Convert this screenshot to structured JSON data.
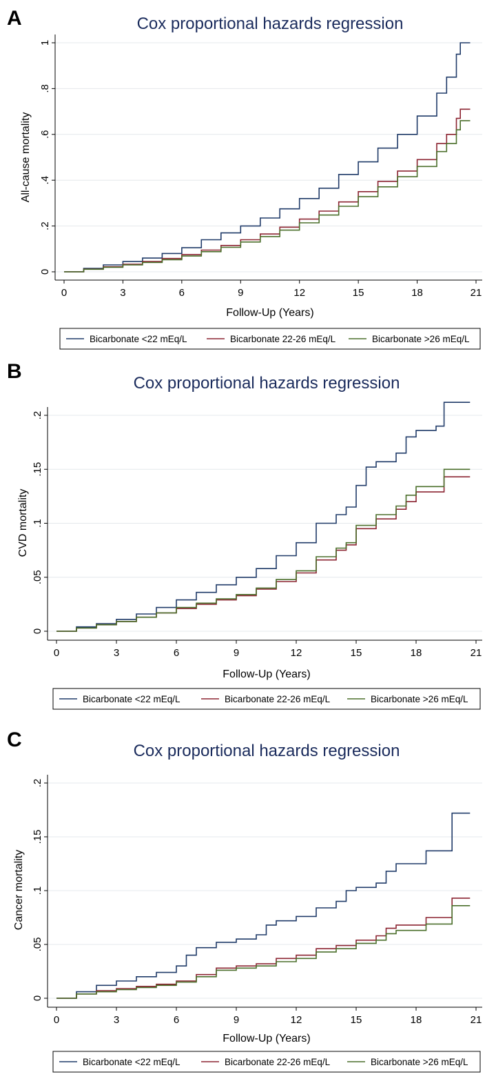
{
  "colors": {
    "lt22": "#1f3a68",
    "mid": "#8b2330",
    "gt26": "#4a6e2a",
    "grid": "#e4e8ec",
    "axis": "#000000"
  },
  "legend": {
    "lt22": "Bicarbonate <22 mEq/L",
    "mid": "Bicarbonate 22-26 mEq/L",
    "gt26": "Bicarbonate >26 mEq/L"
  },
  "chart_data": [
    {
      "panel": "A",
      "type": "line",
      "title": "Cox proportional hazards regression",
      "xlabel": "Follow-Up (Years)",
      "ylabel": "All-cause mortality",
      "xlim": [
        0,
        21
      ],
      "ylim": [
        0,
        1
      ],
      "xticks": [
        0,
        3,
        6,
        9,
        12,
        15,
        18,
        21
      ],
      "yticks": [
        0,
        0.2,
        0.4,
        0.6,
        0.8,
        1
      ],
      "ytick_labels": [
        "0",
        ".2",
        ".4",
        ".6",
        ".8",
        "1"
      ],
      "series": [
        {
          "key": "lt22",
          "name": "Bicarbonate <22 mEq/L",
          "points": [
            [
              0,
              0
            ],
            [
              1,
              0.015
            ],
            [
              2,
              0.03
            ],
            [
              3,
              0.045
            ],
            [
              4,
              0.06
            ],
            [
              5,
              0.08
            ],
            [
              6,
              0.105
            ],
            [
              7,
              0.14
            ],
            [
              8,
              0.17
            ],
            [
              9,
              0.2
            ],
            [
              10,
              0.235
            ],
            [
              11,
              0.275
            ],
            [
              12,
              0.32
            ],
            [
              13,
              0.365
            ],
            [
              14,
              0.425
            ],
            [
              15,
              0.48
            ],
            [
              16,
              0.54
            ],
            [
              17,
              0.6
            ],
            [
              18,
              0.68
            ],
            [
              19,
              0.78
            ],
            [
              19.5,
              0.85
            ],
            [
              20,
              0.95
            ],
            [
              20.2,
              1.0
            ],
            [
              20.7,
              1.0
            ]
          ]
        },
        {
          "key": "mid",
          "name": "Bicarbonate 22-26 mEq/L",
          "points": [
            [
              0,
              0
            ],
            [
              1,
              0.012
            ],
            [
              2,
              0.022
            ],
            [
              3,
              0.033
            ],
            [
              4,
              0.045
            ],
            [
              5,
              0.058
            ],
            [
              6,
              0.075
            ],
            [
              7,
              0.095
            ],
            [
              8,
              0.115
            ],
            [
              9,
              0.14
            ],
            [
              10,
              0.165
            ],
            [
              11,
              0.195
            ],
            [
              12,
              0.23
            ],
            [
              13,
              0.265
            ],
            [
              14,
              0.305
            ],
            [
              15,
              0.35
            ],
            [
              16,
              0.395
            ],
            [
              17,
              0.44
            ],
            [
              18,
              0.49
            ],
            [
              19,
              0.56
            ],
            [
              19.5,
              0.6
            ],
            [
              20,
              0.67
            ],
            [
              20.2,
              0.71
            ],
            [
              20.7,
              0.71
            ]
          ]
        },
        {
          "key": "gt26",
          "name": "Bicarbonate >26 mEq/L",
          "points": [
            [
              0,
              0
            ],
            [
              1,
              0.011
            ],
            [
              2,
              0.02
            ],
            [
              3,
              0.03
            ],
            [
              4,
              0.041
            ],
            [
              5,
              0.053
            ],
            [
              6,
              0.069
            ],
            [
              7,
              0.088
            ],
            [
              8,
              0.107
            ],
            [
              9,
              0.13
            ],
            [
              10,
              0.154
            ],
            [
              11,
              0.182
            ],
            [
              12,
              0.214
            ],
            [
              13,
              0.248
            ],
            [
              14,
              0.286
            ],
            [
              15,
              0.328
            ],
            [
              16,
              0.371
            ],
            [
              17,
              0.415
            ],
            [
              18,
              0.46
            ],
            [
              19,
              0.525
            ],
            [
              19.5,
              0.56
            ],
            [
              20,
              0.62
            ],
            [
              20.2,
              0.66
            ],
            [
              20.7,
              0.66
            ]
          ]
        }
      ]
    },
    {
      "panel": "B",
      "type": "line",
      "title": "Cox proportional hazards regression",
      "xlabel": "Follow-Up (Years)",
      "ylabel": "CVD mortality",
      "xlim": [
        0,
        21
      ],
      "ylim": [
        0,
        0.2
      ],
      "xticks": [
        0,
        3,
        6,
        9,
        12,
        15,
        18,
        21
      ],
      "yticks": [
        0,
        0.05,
        0.1,
        0.15,
        0.2
      ],
      "ytick_labels": [
        "0",
        ".05",
        ".1",
        ".15",
        ".2"
      ],
      "series": [
        {
          "key": "lt22",
          "name": "Bicarbonate <22 mEq/L",
          "points": [
            [
              0,
              0
            ],
            [
              1,
              0.004
            ],
            [
              2,
              0.007
            ],
            [
              3,
              0.011
            ],
            [
              4,
              0.016
            ],
            [
              5,
              0.022
            ],
            [
              6,
              0.029
            ],
            [
              7,
              0.036
            ],
            [
              8,
              0.043
            ],
            [
              9,
              0.05
            ],
            [
              10,
              0.058
            ],
            [
              11,
              0.07
            ],
            [
              12,
              0.082
            ],
            [
              13,
              0.1
            ],
            [
              14,
              0.108
            ],
            [
              14.5,
              0.115
            ],
            [
              15,
              0.135
            ],
            [
              15.5,
              0.152
            ],
            [
              16,
              0.157
            ],
            [
              17,
              0.165
            ],
            [
              17.5,
              0.18
            ],
            [
              18,
              0.186
            ],
            [
              19,
              0.19
            ],
            [
              19.4,
              0.212
            ],
            [
              20.7,
              0.212
            ]
          ]
        },
        {
          "key": "mid",
          "name": "Bicarbonate 22-26 mEq/L",
          "points": [
            [
              0,
              0
            ],
            [
              1,
              0.003
            ],
            [
              2,
              0.006
            ],
            [
              3,
              0.009
            ],
            [
              4,
              0.013
            ],
            [
              5,
              0.017
            ],
            [
              6,
              0.021
            ],
            [
              7,
              0.025
            ],
            [
              8,
              0.029
            ],
            [
              9,
              0.033
            ],
            [
              10,
              0.039
            ],
            [
              11,
              0.046
            ],
            [
              12,
              0.054
            ],
            [
              13,
              0.066
            ],
            [
              14,
              0.075
            ],
            [
              14.5,
              0.08
            ],
            [
              15,
              0.095
            ],
            [
              16,
              0.104
            ],
            [
              17,
              0.113
            ],
            [
              17.5,
              0.12
            ],
            [
              18,
              0.129
            ],
            [
              19.4,
              0.143
            ],
            [
              20.7,
              0.143
            ]
          ]
        },
        {
          "key": "gt26",
          "name": "Bicarbonate >26 mEq/L",
          "points": [
            [
              0,
              0
            ],
            [
              1,
              0.003
            ],
            [
              2,
              0.006
            ],
            [
              3,
              0.009
            ],
            [
              4,
              0.013
            ],
            [
              5,
              0.017
            ],
            [
              6,
              0.022
            ],
            [
              7,
              0.026
            ],
            [
              8,
              0.03
            ],
            [
              9,
              0.034
            ],
            [
              10,
              0.04
            ],
            [
              11,
              0.048
            ],
            [
              12,
              0.056
            ],
            [
              13,
              0.069
            ],
            [
              14,
              0.077
            ],
            [
              14.5,
              0.082
            ],
            [
              15,
              0.098
            ],
            [
              16,
              0.108
            ],
            [
              17,
              0.116
            ],
            [
              17.5,
              0.126
            ],
            [
              18,
              0.134
            ],
            [
              19.4,
              0.15
            ],
            [
              20.7,
              0.15
            ]
          ]
        }
      ]
    },
    {
      "panel": "C",
      "type": "line",
      "title": "Cox proportional hazards regression",
      "xlabel": "Follow-Up (Years)",
      "ylabel": "Cancer mortality",
      "xlim": [
        0,
        21
      ],
      "ylim": [
        0,
        0.2
      ],
      "xticks": [
        0,
        3,
        6,
        9,
        12,
        15,
        18,
        21
      ],
      "yticks": [
        0,
        0.05,
        0.1,
        0.15,
        0.2
      ],
      "ytick_labels": [
        "0",
        ".05",
        ".1",
        ".15",
        ".2"
      ],
      "series": [
        {
          "key": "lt22",
          "name": "Bicarbonate <22 mEq/L",
          "points": [
            [
              0,
              0
            ],
            [
              1,
              0.006
            ],
            [
              2,
              0.012
            ],
            [
              3,
              0.016
            ],
            [
              4,
              0.02
            ],
            [
              5,
              0.024
            ],
            [
              6,
              0.03
            ],
            [
              6.5,
              0.04
            ],
            [
              7,
              0.047
            ],
            [
              8,
              0.052
            ],
            [
              9,
              0.055
            ],
            [
              10,
              0.059
            ],
            [
              10.5,
              0.068
            ],
            [
              11,
              0.072
            ],
            [
              12,
              0.076
            ],
            [
              13,
              0.084
            ],
            [
              14,
              0.09
            ],
            [
              14.5,
              0.1
            ],
            [
              15,
              0.103
            ],
            [
              16,
              0.107
            ],
            [
              16.5,
              0.118
            ],
            [
              17,
              0.125
            ],
            [
              18.5,
              0.125
            ],
            [
              18.5,
              0.137
            ],
            [
              19.8,
              0.137
            ],
            [
              19.8,
              0.172
            ],
            [
              20.7,
              0.172
            ]
          ]
        },
        {
          "key": "mid",
          "name": "Bicarbonate 22-26 mEq/L",
          "points": [
            [
              0,
              0
            ],
            [
              1,
              0.004
            ],
            [
              2,
              0.007
            ],
            [
              3,
              0.009
            ],
            [
              4,
              0.011
            ],
            [
              5,
              0.013
            ],
            [
              6,
              0.016
            ],
            [
              7,
              0.022
            ],
            [
              8,
              0.028
            ],
            [
              9,
              0.03
            ],
            [
              10,
              0.032
            ],
            [
              11,
              0.037
            ],
            [
              12,
              0.04
            ],
            [
              13,
              0.046
            ],
            [
              14,
              0.049
            ],
            [
              15,
              0.054
            ],
            [
              16,
              0.058
            ],
            [
              16.5,
              0.065
            ],
            [
              17,
              0.068
            ],
            [
              18.5,
              0.068
            ],
            [
              18.5,
              0.075
            ],
            [
              19.8,
              0.075
            ],
            [
              19.8,
              0.093
            ],
            [
              20.7,
              0.093
            ]
          ]
        },
        {
          "key": "gt26",
          "name": "Bicarbonate >26 mEq/L",
          "points": [
            [
              0,
              0
            ],
            [
              1,
              0.004
            ],
            [
              2,
              0.006
            ],
            [
              3,
              0.008
            ],
            [
              4,
              0.01
            ],
            [
              5,
              0.012
            ],
            [
              6,
              0.015
            ],
            [
              7,
              0.02
            ],
            [
              8,
              0.026
            ],
            [
              9,
              0.028
            ],
            [
              10,
              0.03
            ],
            [
              11,
              0.034
            ],
            [
              12,
              0.037
            ],
            [
              13,
              0.043
            ],
            [
              14,
              0.046
            ],
            [
              15,
              0.051
            ],
            [
              16,
              0.054
            ],
            [
              16.5,
              0.06
            ],
            [
              17,
              0.063
            ],
            [
              18.5,
              0.063
            ],
            [
              18.5,
              0.069
            ],
            [
              19.8,
              0.069
            ],
            [
              19.8,
              0.086
            ],
            [
              20.7,
              0.086
            ]
          ]
        }
      ]
    }
  ]
}
